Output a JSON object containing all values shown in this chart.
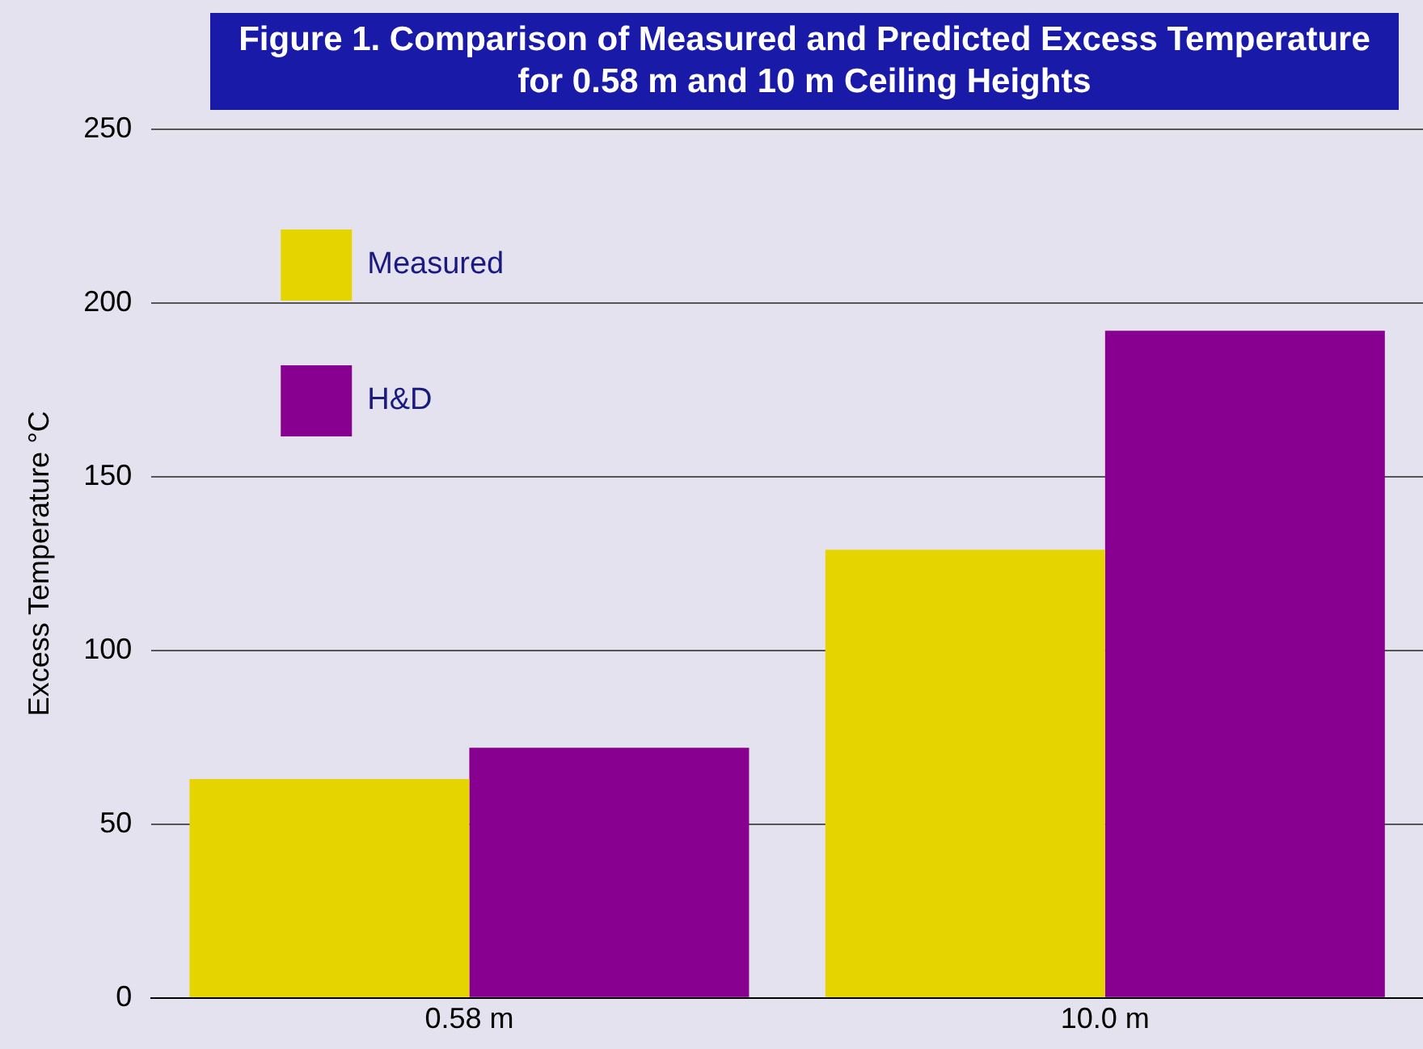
{
  "chart_data": {
    "type": "bar",
    "title": "Figure 1.   Comparison of Measured and Predicted Excess Temperature\nfor 0.58 m and 10 m Ceiling Heights",
    "ylabel": "Excess Temperature °C",
    "categories": [
      "0.58 m",
      "10.0 m"
    ],
    "series": [
      {
        "name": "Measured",
        "color": "#e6d400",
        "values": [
          63,
          129
        ]
      },
      {
        "name": "H&D",
        "color": "#880090",
        "values": [
          72,
          192
        ]
      }
    ],
    "ylim": [
      0,
      250
    ],
    "yticks": [
      0,
      50,
      100,
      150,
      200,
      250
    ],
    "grid": "y",
    "legend": "top left"
  }
}
